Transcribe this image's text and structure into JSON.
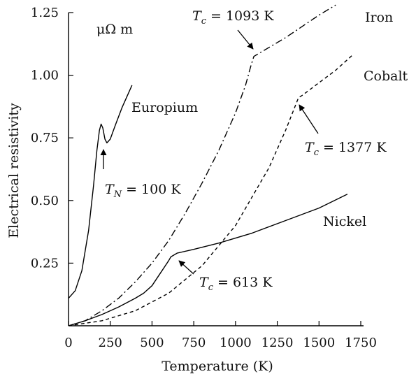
{
  "chart_data": {
    "type": "line",
    "title": "",
    "xlabel": "Temperature (K)",
    "ylabel": "Electrical resistivity",
    "units_label": "μΩ m",
    "xlim": [
      0,
      1750
    ],
    "ylim": [
      0,
      1.25
    ],
    "x_ticks": [
      "0",
      "250",
      "500",
      "750",
      "1000",
      "1250",
      "1500",
      "1750"
    ],
    "y_ticks": [
      "0.25",
      "0.50",
      "0.75",
      "1.00",
      "1.25"
    ],
    "x_tick_values": [
      0,
      250,
      500,
      750,
      1000,
      1250,
      1500,
      1750
    ],
    "y_tick_values": [
      0.25,
      0.5,
      0.75,
      1.0,
      1.25
    ],
    "grid": false,
    "series": [
      {
        "name": "Europium",
        "style": "solid",
        "points": [
          [
            0,
            0.11
          ],
          [
            40,
            0.14
          ],
          [
            80,
            0.22
          ],
          [
            120,
            0.38
          ],
          [
            150,
            0.56
          ],
          [
            170,
            0.7
          ],
          [
            185,
            0.78
          ],
          [
            195,
            0.805
          ],
          [
            205,
            0.79
          ],
          [
            218,
            0.745
          ],
          [
            230,
            0.73
          ],
          [
            250,
            0.745
          ],
          [
            280,
            0.8
          ],
          [
            320,
            0.87
          ],
          [
            360,
            0.93
          ],
          [
            380,
            0.96
          ]
        ]
      },
      {
        "name": "Iron",
        "style": "dashdot",
        "points": [
          [
            0,
            0.0
          ],
          [
            100,
            0.02
          ],
          [
            200,
            0.06
          ],
          [
            300,
            0.11
          ],
          [
            400,
            0.175
          ],
          [
            500,
            0.25
          ],
          [
            600,
            0.34
          ],
          [
            700,
            0.45
          ],
          [
            800,
            0.57
          ],
          [
            900,
            0.7
          ],
          [
            1000,
            0.85
          ],
          [
            1060,
            0.96
          ],
          [
            1093,
            1.04
          ],
          [
            1110,
            1.075
          ],
          [
            1300,
            1.15
          ],
          [
            1500,
            1.24
          ],
          [
            1600,
            1.28
          ]
        ]
      },
      {
        "name": "Cobalt",
        "style": "dashed",
        "points": [
          [
            0,
            0.0
          ],
          [
            200,
            0.02
          ],
          [
            400,
            0.06
          ],
          [
            600,
            0.13
          ],
          [
            800,
            0.24
          ],
          [
            1000,
            0.4
          ],
          [
            1200,
            0.63
          ],
          [
            1300,
            0.78
          ],
          [
            1377,
            0.91
          ],
          [
            1400,
            0.92
          ],
          [
            1600,
            1.02
          ],
          [
            1700,
            1.08
          ]
        ]
      },
      {
        "name": "Nickel",
        "style": "solid",
        "points": [
          [
            0,
            0.0
          ],
          [
            100,
            0.02
          ],
          [
            200,
            0.045
          ],
          [
            300,
            0.075
          ],
          [
            400,
            0.11
          ],
          [
            450,
            0.13
          ],
          [
            500,
            0.16
          ],
          [
            550,
            0.21
          ],
          [
            600,
            0.26
          ],
          [
            613,
            0.275
          ],
          [
            650,
            0.29
          ],
          [
            750,
            0.305
          ],
          [
            900,
            0.33
          ],
          [
            1100,
            0.37
          ],
          [
            1300,
            0.42
          ],
          [
            1500,
            0.47
          ],
          [
            1670,
            0.525
          ]
        ]
      }
    ],
    "annotations": [
      {
        "label": "T_c = 1093 K",
        "main": "T",
        "sub": "c",
        "rest": " = 1093 K"
      },
      {
        "label": "T_c = 1377 K",
        "main": "T",
        "sub": "c",
        "rest": " = 1377 K"
      },
      {
        "label": "T_c = 613 K",
        "main": "T",
        "sub": "c",
        "rest": " = 613 K"
      },
      {
        "label": "T_N = 100 K",
        "main": "T",
        "sub": "N",
        "rest": " = 100 K"
      }
    ]
  }
}
